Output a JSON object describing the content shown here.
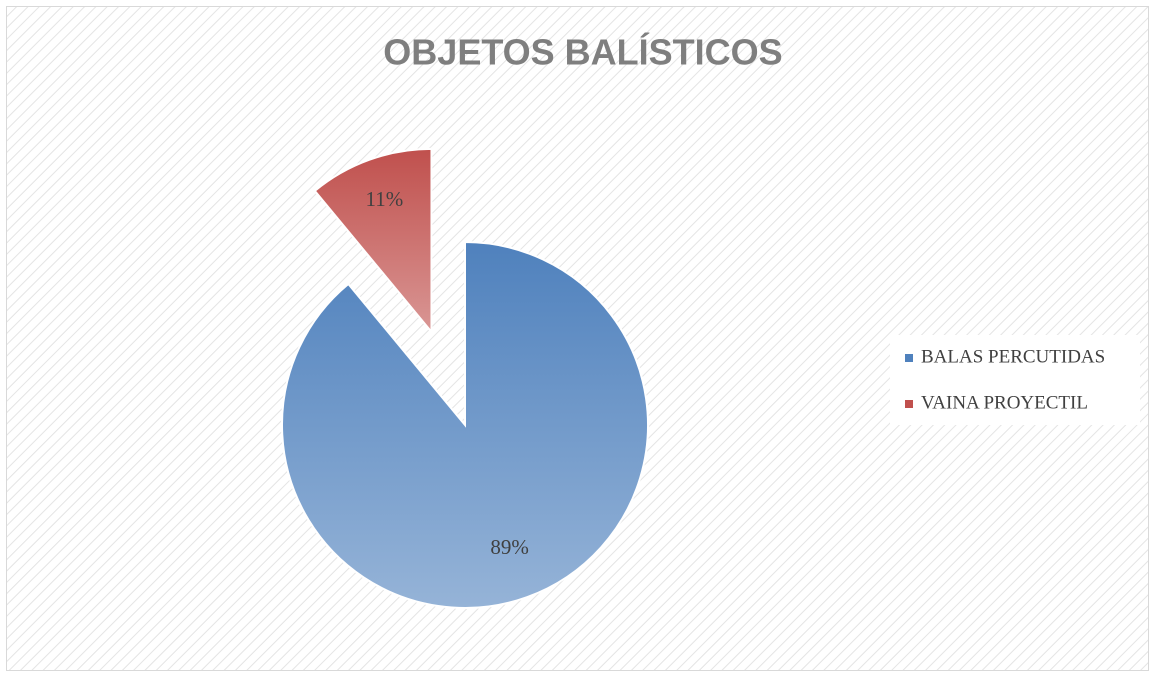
{
  "chart_data": {
    "type": "pie",
    "title": "OBJETOS BALÍSTICOS",
    "categories": [
      "BALAS PERCUTIDAS",
      "VAINA PROYECTIL"
    ],
    "values": [
      89,
      11
    ],
    "value_labels": [
      "89%",
      "11%"
    ],
    "colors": [
      "#4f81bd",
      "#c0504d"
    ],
    "legend": "right"
  }
}
